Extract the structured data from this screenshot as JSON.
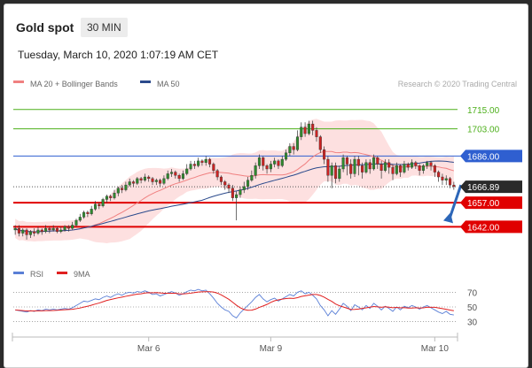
{
  "header": {
    "title": "Gold spot",
    "timeframe": "30 MIN",
    "datetime": "Tuesday, March 10, 2020 1:07:19 AM CET"
  },
  "legend": {
    "ma20_label": "MA 20 + Bollinger Bands",
    "ma50_label": "MA 50",
    "copyright": "Research © 2020 Trading Central",
    "rsi_label": "RSI",
    "ma9_label": "9MA"
  },
  "colors": {
    "ma20": "#f08080",
    "ma50": "#2b4a8c",
    "band_fill": "#fde0e0",
    "green_level": "#4caf1a",
    "blue_level": "#2f5fd0",
    "red_level": "#e00000",
    "current_price": "#2a2a2a",
    "candle_up": "#2e8b2e",
    "candle_down": "#cc2222",
    "rsi": "#5a7fd6",
    "ma9": "#e02020",
    "arrow": "#2c66b8"
  },
  "chart_data": {
    "type": "candlestick",
    "y_range": [
      1624,
      1727
    ],
    "x_ticks": [
      "Mar 6",
      "Mar 9",
      "Mar 10"
    ],
    "levels": [
      {
        "value": 1715.0,
        "label": "1715.00",
        "kind": "resistance",
        "color": "#4caf1a"
      },
      {
        "value": 1703.0,
        "label": "1703.00",
        "kind": "resistance",
        "color": "#4caf1a"
      },
      {
        "value": 1686.0,
        "label": "1686.00",
        "kind": "pivot",
        "color": "#2f5fd0"
      },
      {
        "value": 1666.89,
        "label": "1666.89",
        "kind": "current",
        "color": "#2a2a2a"
      },
      {
        "value": 1657.0,
        "label": "1657.00",
        "kind": "support",
        "color": "#e00000"
      },
      {
        "value": 1642.0,
        "label": "1642.00",
        "kind": "support",
        "color": "#e00000"
      }
    ],
    "forecast_arrow": {
      "from": 1668,
      "to": 1642,
      "direction": "down"
    },
    "candles": [
      [
        1640,
        1641,
        1637,
        1643
      ],
      [
        1641,
        1638,
        1636,
        1643
      ],
      [
        1638,
        1640,
        1636,
        1641
      ],
      [
        1640,
        1637,
        1634,
        1641
      ],
      [
        1637,
        1639,
        1635,
        1640
      ],
      [
        1639,
        1638,
        1636,
        1641
      ],
      [
        1638,
        1640,
        1637,
        1642
      ],
      [
        1640,
        1639,
        1637,
        1641
      ],
      [
        1639,
        1641,
        1638,
        1643
      ],
      [
        1641,
        1640,
        1638,
        1642
      ],
      [
        1640,
        1641,
        1639,
        1643
      ],
      [
        1641,
        1639,
        1638,
        1642
      ],
      [
        1639,
        1640,
        1638,
        1642
      ],
      [
        1640,
        1642,
        1639,
        1643
      ],
      [
        1642,
        1641,
        1639,
        1643
      ],
      [
        1641,
        1643,
        1640,
        1645
      ],
      [
        1643,
        1646,
        1642,
        1647
      ],
      [
        1646,
        1648,
        1645,
        1650
      ],
      [
        1648,
        1651,
        1647,
        1652
      ],
      [
        1651,
        1650,
        1648,
        1652
      ],
      [
        1650,
        1653,
        1649,
        1655
      ],
      [
        1653,
        1656,
        1652,
        1658
      ],
      [
        1656,
        1655,
        1653,
        1657
      ],
      [
        1655,
        1659,
        1654,
        1660
      ],
      [
        1659,
        1661,
        1657,
        1662
      ],
      [
        1661,
        1660,
        1658,
        1662
      ],
      [
        1660,
        1663,
        1659,
        1665
      ],
      [
        1663,
        1666,
        1661,
        1667
      ],
      [
        1666,
        1665,
        1663,
        1668
      ],
      [
        1665,
        1668,
        1664,
        1670
      ],
      [
        1668,
        1670,
        1667,
        1672
      ],
      [
        1670,
        1669,
        1667,
        1671
      ],
      [
        1669,
        1672,
        1668,
        1673
      ],
      [
        1672,
        1671,
        1669,
        1673
      ],
      [
        1671,
        1673,
        1670,
        1675
      ],
      [
        1673,
        1672,
        1670,
        1674
      ],
      [
        1672,
        1670,
        1668,
        1673
      ],
      [
        1670,
        1671,
        1668,
        1672
      ],
      [
        1671,
        1669,
        1667,
        1672
      ],
      [
        1669,
        1672,
        1668,
        1674
      ],
      [
        1672,
        1675,
        1671,
        1677
      ],
      [
        1675,
        1676,
        1673,
        1678
      ],
      [
        1676,
        1674,
        1672,
        1677
      ],
      [
        1674,
        1672,
        1670,
        1675
      ],
      [
        1672,
        1675,
        1671,
        1677
      ],
      [
        1675,
        1678,
        1674,
        1681
      ],
      [
        1678,
        1681,
        1677,
        1683
      ],
      [
        1681,
        1680,
        1678,
        1683
      ],
      [
        1680,
        1683,
        1679,
        1685
      ],
      [
        1683,
        1682,
        1680,
        1684
      ],
      [
        1682,
        1684,
        1680,
        1686
      ],
      [
        1684,
        1681,
        1679,
        1685
      ],
      [
        1681,
        1677,
        1675,
        1682
      ],
      [
        1677,
        1673,
        1671,
        1678
      ],
      [
        1673,
        1670,
        1668,
        1674
      ],
      [
        1670,
        1668,
        1665,
        1671
      ],
      [
        1668,
        1666,
        1663,
        1669
      ],
      [
        1666,
        1660,
        1658,
        1668
      ],
      [
        1660,
        1662,
        1646,
        1664
      ],
      [
        1662,
        1665,
        1660,
        1667
      ],
      [
        1665,
        1667,
        1663,
        1670
      ],
      [
        1667,
        1671,
        1665,
        1673
      ],
      [
        1671,
        1674,
        1670,
        1677
      ],
      [
        1674,
        1680,
        1672,
        1682
      ],
      [
        1680,
        1685,
        1678,
        1687
      ],
      [
        1685,
        1680,
        1677,
        1686
      ],
      [
        1680,
        1678,
        1675,
        1681
      ],
      [
        1678,
        1681,
        1676,
        1683
      ],
      [
        1681,
        1683,
        1679,
        1685
      ],
      [
        1683,
        1680,
        1678,
        1684
      ],
      [
        1680,
        1684,
        1679,
        1686
      ],
      [
        1684,
        1688,
        1683,
        1690
      ],
      [
        1688,
        1692,
        1686,
        1694
      ],
      [
        1692,
        1690,
        1687,
        1694
      ],
      [
        1690,
        1698,
        1689,
        1702
      ],
      [
        1698,
        1704,
        1696,
        1707
      ],
      [
        1704,
        1700,
        1698,
        1707
      ],
      [
        1700,
        1706,
        1699,
        1708
      ],
      [
        1706,
        1702,
        1699,
        1708
      ],
      [
        1702,
        1698,
        1695,
        1704
      ],
      [
        1698,
        1690,
        1688,
        1699
      ],
      [
        1690,
        1684,
        1681,
        1692
      ],
      [
        1684,
        1674,
        1670,
        1686
      ],
      [
        1674,
        1680,
        1666,
        1682
      ],
      [
        1680,
        1672,
        1669,
        1682
      ],
      [
        1672,
        1678,
        1670,
        1680
      ],
      [
        1678,
        1685,
        1676,
        1687
      ],
      [
        1685,
        1681,
        1674,
        1686
      ],
      [
        1681,
        1675,
        1672,
        1684
      ],
      [
        1675,
        1684,
        1673,
        1686
      ],
      [
        1684,
        1680,
        1674,
        1686
      ],
      [
        1680,
        1676,
        1672,
        1682
      ],
      [
        1676,
        1682,
        1675,
        1684
      ],
      [
        1682,
        1678,
        1675,
        1684
      ],
      [
        1678,
        1685,
        1677,
        1687
      ],
      [
        1685,
        1681,
        1678,
        1686
      ],
      [
        1681,
        1677,
        1672,
        1683
      ],
      [
        1677,
        1682,
        1676,
        1684
      ],
      [
        1682,
        1679,
        1675,
        1684
      ],
      [
        1679,
        1675,
        1671,
        1681
      ],
      [
        1675,
        1680,
        1674,
        1682
      ],
      [
        1680,
        1676,
        1673,
        1681
      ],
      [
        1676,
        1681,
        1675,
        1683
      ],
      [
        1681,
        1679,
        1677,
        1682
      ],
      [
        1679,
        1682,
        1678,
        1684
      ],
      [
        1682,
        1680,
        1678,
        1683
      ],
      [
        1680,
        1677,
        1674,
        1681
      ],
      [
        1677,
        1680,
        1675,
        1681
      ],
      [
        1680,
        1682,
        1678,
        1683
      ],
      [
        1682,
        1680,
        1677,
        1683
      ],
      [
        1680,
        1676,
        1673,
        1681
      ],
      [
        1676,
        1673,
        1670,
        1677
      ],
      [
        1673,
        1671,
        1668,
        1675
      ],
      [
        1671,
        1672,
        1668,
        1674
      ],
      [
        1672,
        1668,
        1666,
        1673
      ],
      [
        1668,
        1667,
        1665,
        1670
      ]
    ],
    "rsi": [
      46,
      45,
      44,
      43,
      45,
      44,
      46,
      45,
      47,
      46,
      47,
      46,
      47,
      48,
      47,
      49,
      52,
      55,
      58,
      57,
      59,
      61,
      60,
      63,
      65,
      63,
      66,
      68,
      66,
      69,
      70,
      69,
      71,
      70,
      72,
      70,
      67,
      68,
      65,
      67,
      69,
      71,
      69,
      66,
      68,
      71,
      73,
      72,
      74,
      72,
      73,
      68,
      62,
      55,
      50,
      46,
      44,
      38,
      35,
      42,
      47,
      52,
      57,
      63,
      67,
      61,
      57,
      60,
      62,
      58,
      61,
      64,
      67,
      65,
      70,
      72,
      68,
      70,
      66,
      61,
      52,
      46,
      38,
      45,
      40,
      47,
      55,
      51,
      45,
      53,
      50,
      46,
      52,
      48,
      55,
      51,
      46,
      51,
      48,
      44,
      50,
      46,
      51,
      49,
      52,
      50,
      47,
      50,
      52,
      49,
      46,
      43,
      41,
      44,
      40,
      39
    ],
    "rsi_levels": [
      70,
      50,
      30
    ]
  }
}
